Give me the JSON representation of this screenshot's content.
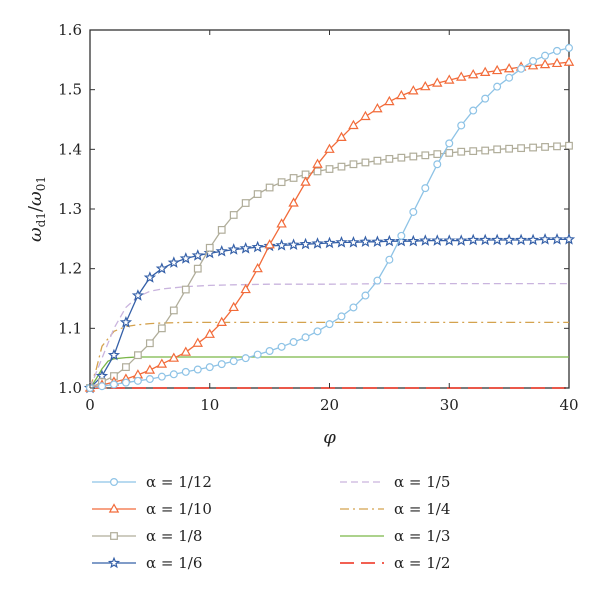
{
  "chart_data": {
    "type": "line",
    "title": "",
    "xlabel": "φ",
    "ylabel_main": "ω",
    "ylabel_sub1": "d1",
    "ylabel_slash": "/",
    "ylabel_sub2": "01",
    "xlim": [
      0,
      40
    ],
    "ylim": [
      1.0,
      1.6
    ],
    "xticks": [
      0,
      10,
      20,
      30,
      40
    ],
    "xtick_labels": [
      "0",
      "10",
      "20",
      "30",
      "40"
    ],
    "yticks": [
      1.0,
      1.1,
      1.2,
      1.3,
      1.4,
      1.5,
      1.6
    ],
    "ytick_labels": [
      "1.0",
      "1.1",
      "1.2",
      "1.3",
      "1.4",
      "1.5",
      "1.6"
    ],
    "grid": false,
    "legend_position": "below plot, two columns",
    "series": [
      {
        "name": "α = 1/12",
        "color": "#8ec3e6",
        "dash": "solid",
        "marker": "circle",
        "x": [
          0,
          1,
          2,
          3,
          4,
          5,
          6,
          7,
          8,
          9,
          10,
          11,
          12,
          13,
          14,
          15,
          16,
          17,
          18,
          19,
          20,
          21,
          22,
          23,
          24,
          25,
          26,
          27,
          28,
          29,
          30,
          31,
          32,
          33,
          34,
          35,
          36,
          37,
          38,
          39,
          40
        ],
        "y": [
          1.0,
          1.003,
          1.006,
          1.009,
          1.012,
          1.015,
          1.019,
          1.023,
          1.027,
          1.031,
          1.035,
          1.04,
          1.045,
          1.05,
          1.056,
          1.062,
          1.069,
          1.077,
          1.085,
          1.095,
          1.107,
          1.12,
          1.135,
          1.155,
          1.18,
          1.215,
          1.255,
          1.295,
          1.335,
          1.375,
          1.41,
          1.44,
          1.465,
          1.485,
          1.505,
          1.52,
          1.535,
          1.548,
          1.557,
          1.565,
          1.57
        ]
      },
      {
        "name": "α = 1/10",
        "color": "#f26b3a",
        "dash": "solid",
        "marker": "triangle",
        "x": [
          0,
          1,
          2,
          3,
          4,
          5,
          6,
          7,
          8,
          9,
          10,
          11,
          12,
          13,
          14,
          15,
          16,
          17,
          18,
          19,
          20,
          21,
          22,
          23,
          24,
          25,
          26,
          27,
          28,
          29,
          30,
          31,
          32,
          33,
          34,
          35,
          36,
          37,
          38,
          39,
          40
        ],
        "y": [
          1.0,
          1.005,
          1.01,
          1.015,
          1.022,
          1.03,
          1.04,
          1.05,
          1.06,
          1.075,
          1.09,
          1.11,
          1.135,
          1.165,
          1.2,
          1.24,
          1.275,
          1.31,
          1.345,
          1.375,
          1.4,
          1.42,
          1.44,
          1.455,
          1.468,
          1.48,
          1.49,
          1.498,
          1.505,
          1.511,
          1.516,
          1.521,
          1.525,
          1.529,
          1.532,
          1.535,
          1.538,
          1.54,
          1.542,
          1.544,
          1.546
        ]
      },
      {
        "name": "α = 1/8",
        "color": "#b0ad9a",
        "dash": "solid",
        "marker": "square",
        "x": [
          0,
          1,
          2,
          3,
          4,
          5,
          6,
          7,
          8,
          9,
          10,
          11,
          12,
          13,
          14,
          15,
          16,
          17,
          18,
          19,
          20,
          21,
          22,
          23,
          24,
          25,
          26,
          27,
          28,
          29,
          30,
          31,
          32,
          33,
          34,
          35,
          36,
          37,
          38,
          39,
          40
        ],
        "y": [
          1.0,
          1.01,
          1.02,
          1.035,
          1.055,
          1.075,
          1.1,
          1.13,
          1.165,
          1.2,
          1.235,
          1.265,
          1.29,
          1.31,
          1.325,
          1.336,
          1.345,
          1.352,
          1.358,
          1.363,
          1.367,
          1.371,
          1.375,
          1.378,
          1.381,
          1.384,
          1.386,
          1.388,
          1.39,
          1.392,
          1.394,
          1.396,
          1.397,
          1.398,
          1.4,
          1.401,
          1.402,
          1.403,
          1.404,
          1.405,
          1.406
        ]
      },
      {
        "name": "α = 1/6",
        "color": "#3560a8",
        "dash": "solid",
        "marker": "star",
        "x": [
          0,
          1,
          2,
          3,
          4,
          5,
          6,
          7,
          8,
          9,
          10,
          11,
          12,
          13,
          14,
          15,
          16,
          17,
          18,
          19,
          20,
          21,
          22,
          23,
          24,
          25,
          26,
          27,
          28,
          29,
          30,
          31,
          32,
          33,
          34,
          35,
          36,
          37,
          38,
          39,
          40
        ],
        "y": [
          1.0,
          1.02,
          1.055,
          1.11,
          1.155,
          1.185,
          1.2,
          1.21,
          1.217,
          1.222,
          1.226,
          1.229,
          1.232,
          1.234,
          1.236,
          1.238,
          1.239,
          1.24,
          1.241,
          1.242,
          1.243,
          1.244,
          1.244,
          1.245,
          1.245,
          1.246,
          1.246,
          1.246,
          1.247,
          1.247,
          1.247,
          1.247,
          1.248,
          1.248,
          1.248,
          1.248,
          1.248,
          1.248,
          1.249,
          1.249,
          1.249
        ]
      },
      {
        "name": "α = 1/5",
        "color": "#c9b4de",
        "dash": "dashed",
        "marker": "none",
        "x": [
          0,
          1,
          2,
          3,
          4,
          5,
          6,
          7,
          8,
          10,
          12,
          15,
          20,
          25,
          30,
          35,
          40
        ],
        "y": [
          1.0,
          1.05,
          1.1,
          1.135,
          1.153,
          1.162,
          1.166,
          1.168,
          1.17,
          1.172,
          1.173,
          1.174,
          1.174,
          1.175,
          1.175,
          1.175,
          1.175
        ]
      },
      {
        "name": "α = 1/4",
        "color": "#d4a24e",
        "dash": "dashdot",
        "marker": "none",
        "x": [
          0,
          0.5,
          1,
          2,
          3,
          4,
          5,
          6,
          8,
          10,
          15,
          20,
          30,
          40
        ],
        "y": [
          1.0,
          1.03,
          1.07,
          1.095,
          1.103,
          1.106,
          1.108,
          1.109,
          1.11,
          1.11,
          1.11,
          1.11,
          1.11,
          1.11
        ]
      },
      {
        "name": "α = 1/3",
        "color": "#7ab648",
        "dash": "solid",
        "marker": "none",
        "x": [
          0,
          0.5,
          1,
          1.5,
          2,
          3,
          4,
          6,
          10,
          20,
          30,
          40
        ],
        "y": [
          1.0,
          1.015,
          1.032,
          1.045,
          1.049,
          1.051,
          1.052,
          1.052,
          1.052,
          1.052,
          1.052,
          1.052
        ]
      },
      {
        "name": "α = 1/2",
        "color": "#f04a3a",
        "dash": "longdash",
        "marker": "none",
        "x": [
          0,
          40
        ],
        "y": [
          1.0,
          1.0
        ]
      }
    ]
  }
}
